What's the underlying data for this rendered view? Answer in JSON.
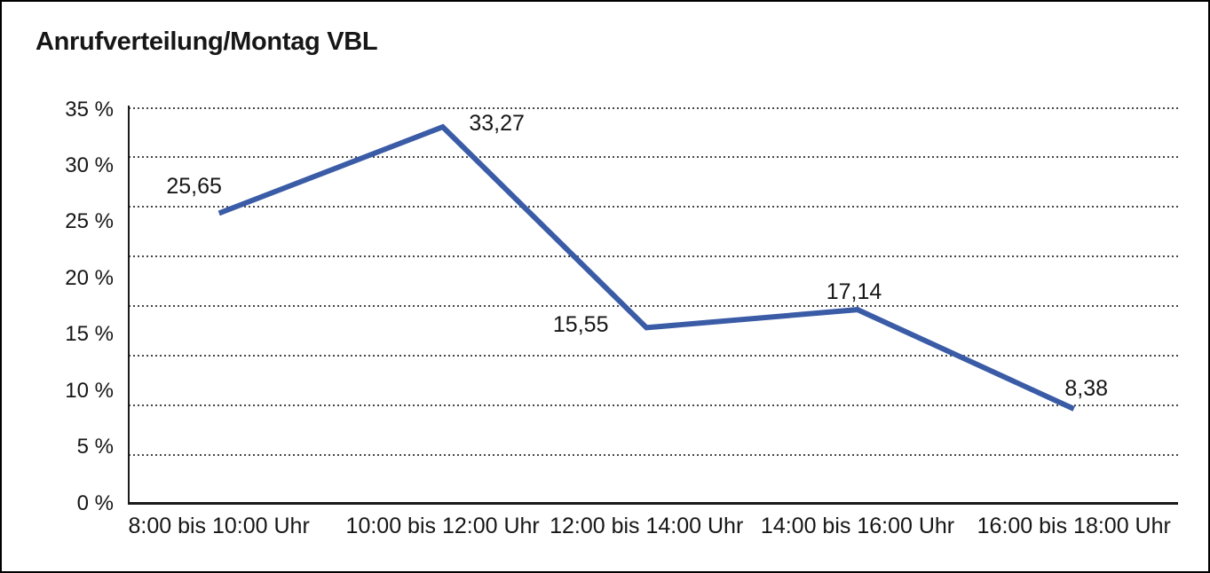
{
  "title": "Anrufverteilung/Montag VBL",
  "colors": {
    "line": "#3A5BA6",
    "text": "#161616",
    "grid_dots": "#474747",
    "axis": "#1A1A1A",
    "background": "#FFFFFF",
    "border": "#000000"
  },
  "chart_data": {
    "type": "line",
    "title": "Anrufverteilung/Montag VBL",
    "categories": [
      "8:00 bis 10:00 Uhr",
      "10:00 bis 12:00 Uhr",
      "12:00 bis 14:00 Uhr",
      "14:00 bis 16:00 Uhr",
      "16:00 bis 18:00 Uhr"
    ],
    "values": [
      25.65,
      33.27,
      15.55,
      17.14,
      8.38
    ],
    "value_labels": [
      "25,65",
      "33,27",
      "15,55",
      "17,14",
      "8,38"
    ],
    "unit": "%",
    "y_axis": {
      "min": 0,
      "max": 35,
      "tick_step": 5,
      "tick_labels": [
        "35 %",
        "30 %",
        "25 %",
        "20 %",
        "15 %",
        "10 %",
        "5 %",
        "0 %"
      ]
    },
    "xlabel": "",
    "ylabel": "",
    "grid": "horizontal-dotted",
    "legend": "none"
  }
}
